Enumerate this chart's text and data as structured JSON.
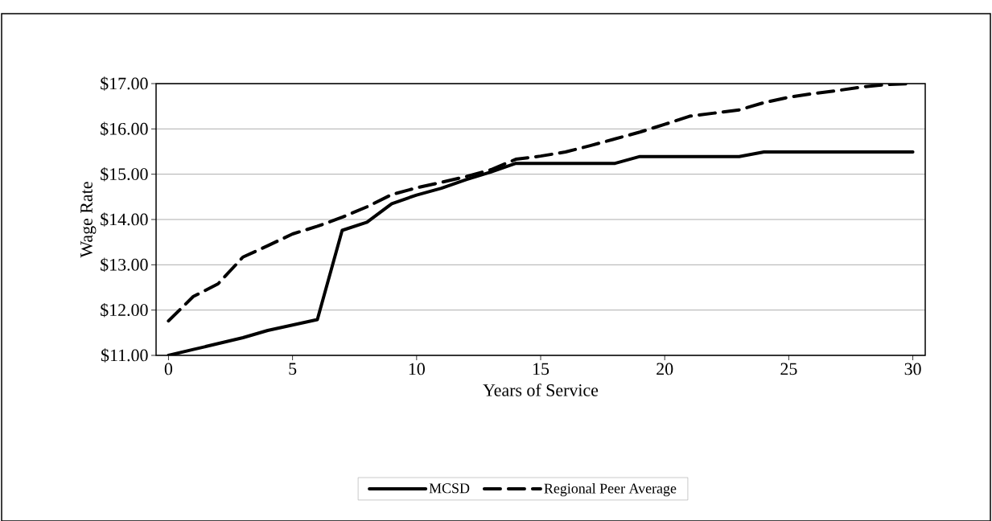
{
  "chart_data": {
    "type": "line",
    "xlabel": "Years of Service",
    "ylabel": "Wage Rate",
    "x": [
      0,
      1,
      2,
      3,
      4,
      5,
      6,
      7,
      8,
      9,
      10,
      11,
      12,
      13,
      14,
      15,
      16,
      17,
      18,
      19,
      20,
      21,
      22,
      23,
      24,
      25,
      26,
      27,
      28,
      29,
      30
    ],
    "series": [
      {
        "name": "MCSD",
        "color": "#000000",
        "line_style": "solid",
        "values": [
          11.0,
          11.13,
          11.26,
          11.39,
          11.55,
          11.67,
          11.79,
          13.76,
          13.94,
          14.35,
          14.54,
          14.69,
          14.88,
          15.05,
          15.24,
          15.24,
          15.24,
          15.24,
          15.24,
          15.39,
          15.39,
          15.39,
          15.39,
          15.39,
          15.49,
          15.49,
          15.49,
          15.49,
          15.49,
          15.49,
          15.49
        ]
      },
      {
        "name": "Regional Peer Average",
        "color": "#000000",
        "line_style": "dashed",
        "values": [
          11.76,
          12.3,
          12.58,
          13.17,
          13.42,
          13.68,
          13.85,
          14.05,
          14.28,
          14.55,
          14.7,
          14.82,
          14.95,
          15.1,
          15.33,
          15.4,
          15.49,
          15.63,
          15.78,
          15.93,
          16.1,
          16.28,
          16.35,
          16.42,
          16.58,
          16.7,
          16.78,
          16.85,
          16.93,
          16.98,
          17.0
        ]
      }
    ],
    "xlim": [
      -0.5,
      30.5
    ],
    "xticks": [
      0,
      5,
      10,
      15,
      20,
      25,
      30
    ],
    "ylim": [
      11,
      17
    ],
    "yticks": [
      {
        "value": 11,
        "label": "$11.00"
      },
      {
        "value": 12,
        "label": "$12.00"
      },
      {
        "value": 13,
        "label": "$13.00"
      },
      {
        "value": 14,
        "label": "$14.00"
      },
      {
        "value": 15,
        "label": "$15.00"
      },
      {
        "value": 16,
        "label": "$16.00"
      },
      {
        "value": 17,
        "label": "$17.00"
      }
    ],
    "grid": "y",
    "legend": "bottom",
    "marker": "none"
  }
}
